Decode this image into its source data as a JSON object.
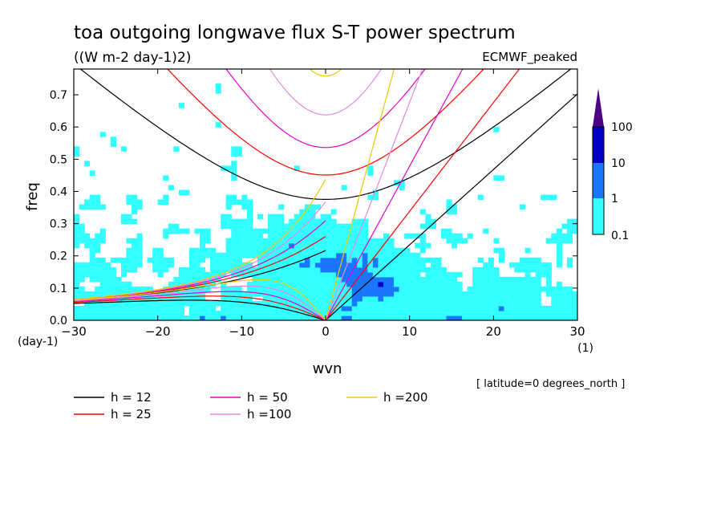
{
  "chart_data": {
    "type": "heatmap",
    "title": "toa outgoing longwave flux S-T power spectrum",
    "subtitle": "((W m-2 day-1)2)",
    "dataset_label": "ECMWF_peaked",
    "xlabel": "wvn",
    "ylabel": "freq",
    "x_unit": "(1)",
    "y_unit": "(day-1)",
    "xlim": [
      -30,
      30
    ],
    "ylim": [
      0,
      0.78
    ],
    "x_ticks": [
      -30,
      -20,
      -10,
      0,
      10,
      20,
      30
    ],
    "x_tick_labels": [
      "−30",
      "−20",
      "−10",
      "0",
      "10",
      "20",
      "30"
    ],
    "y_ticks": [
      0,
      0.1,
      0.2,
      0.3,
      0.4,
      0.5,
      0.6,
      0.7
    ],
    "y_tick_labels": [
      "0.0",
      "0.1",
      "0.2",
      "0.3",
      "0.4",
      "0.5",
      "0.6",
      "0.7"
    ],
    "colorbar": {
      "labels": [
        "0.1",
        "1",
        "10",
        "100"
      ],
      "levels": [
        0.1,
        1,
        10,
        100
      ],
      "colors": [
        "#ffffff",
        "#33ffff",
        "#1a75ff",
        "#0000c8",
        "#4b0082"
      ]
    },
    "dispersion_curves": [
      {
        "name": "h = 12",
        "h": 12,
        "color": "#000000"
      },
      {
        "name": "h = 25",
        "h": 25,
        "color": "#ff0000"
      },
      {
        "name": "h = 50",
        "h": 50,
        "color": "#e600c8"
      },
      {
        "name": "h =100",
        "h": 100,
        "color": "#e08ae0"
      },
      {
        "name": "h =200",
        "h": 200,
        "color": "#f0c800"
      }
    ],
    "annotation": "[ latitude=0 degrees_north ]"
  }
}
